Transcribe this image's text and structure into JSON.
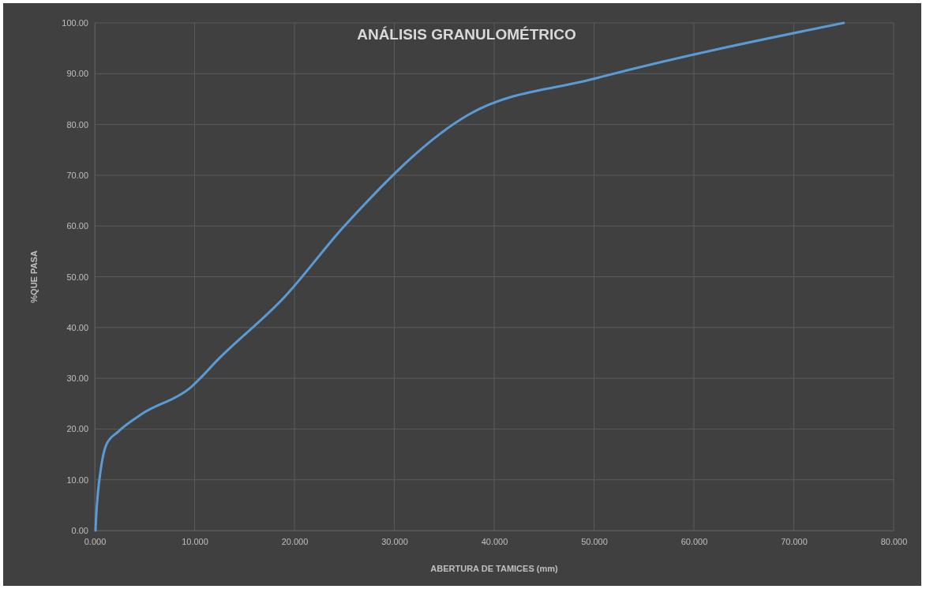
{
  "chart_data": {
    "type": "line",
    "title": "ANÁLISIS GRANULOMÉTRICO",
    "xlabel": "ABERTURA DE TAMICES  (mm)",
    "ylabel": "%QUE PASA",
    "series": [
      {
        "color": "#5b9bd5",
        "x": [
          0.075,
          0.15,
          0.3,
          0.6,
          1.18,
          2.36,
          4.75,
          9.5,
          12.5,
          19,
          25,
          37.5,
          50,
          75
        ],
        "values": [
          0,
          3,
          7,
          12,
          17,
          19.5,
          23,
          28,
          34,
          46,
          60,
          82,
          89,
          100
        ]
      }
    ],
    "xlim": [
      0,
      80
    ],
    "ylim": [
      0,
      100
    ],
    "xticks": [
      {
        "value": 0,
        "label": "0.000"
      },
      {
        "value": 10,
        "label": "10.000"
      },
      {
        "value": 20,
        "label": "20.000"
      },
      {
        "value": 30,
        "label": "30.000"
      },
      {
        "value": 40,
        "label": "40.000"
      },
      {
        "value": 50,
        "label": "50.000"
      },
      {
        "value": 60,
        "label": "60.000"
      },
      {
        "value": 70,
        "label": "70.000"
      },
      {
        "value": 80,
        "label": "80.000"
      }
    ],
    "yticks": [
      {
        "value": 0,
        "label": "0.00"
      },
      {
        "value": 10,
        "label": "10.00"
      },
      {
        "value": 20,
        "label": "20.00"
      },
      {
        "value": 30,
        "label": "30.00"
      },
      {
        "value": 40,
        "label": "40.00"
      },
      {
        "value": 50,
        "label": "50.00"
      },
      {
        "value": 60,
        "label": "60.00"
      },
      {
        "value": 70,
        "label": "70.00"
      },
      {
        "value": 80,
        "label": "80.00"
      },
      {
        "value": 90,
        "label": "90.00"
      },
      {
        "value": 100,
        "label": "100.00"
      }
    ],
    "grid": true,
    "marker": "none",
    "line_style": "solid"
  }
}
